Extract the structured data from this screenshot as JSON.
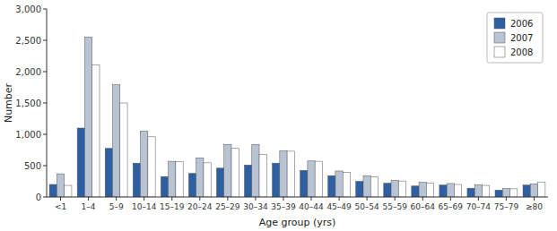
{
  "chart_data": {
    "type": "bar",
    "categories": [
      "<1",
      "1–4",
      "5–9",
      "10–14",
      "15–19",
      "20–24",
      "25–29",
      "30–34",
      "35–39",
      "40–44",
      "45–49",
      "50–54",
      "55–59",
      "60–64",
      "65–69",
      "70–74",
      "75–79",
      "≥80"
    ],
    "series": [
      {
        "name": "2006",
        "color": "#2e5fa3",
        "values": [
          200,
          1100,
          775,
          540,
          325,
          375,
          460,
          510,
          540,
          425,
          340,
          250,
          220,
          175,
          190,
          140,
          110,
          190
        ]
      },
      {
        "name": "2007",
        "color": "#b8c4d4",
        "values": [
          370,
          2550,
          1790,
          1050,
          570,
          625,
          840,
          840,
          740,
          575,
          415,
          340,
          265,
          235,
          215,
          195,
          135,
          210
        ]
      },
      {
        "name": "2008",
        "color": "#ffffff",
        "values": [
          185,
          2110,
          1500,
          960,
          565,
          545,
          775,
          680,
          730,
          570,
          395,
          325,
          255,
          220,
          200,
          185,
          130,
          240
        ]
      }
    ],
    "xlabel": "Age group (yrs)",
    "ylabel": "Number",
    "ylim": [
      0,
      3000
    ],
    "yticks": [
      0,
      500,
      {
        "value": 1000,
        "label": "1,000"
      },
      {
        "value": 1500,
        "label": "1,500"
      },
      {
        "value": 2000,
        "label": "2,000"
      },
      {
        "value": 2500,
        "label": "2,500"
      },
      {
        "value": 3000,
        "label": "3,000"
      }
    ],
    "legend": "upper right",
    "grid": false
  }
}
